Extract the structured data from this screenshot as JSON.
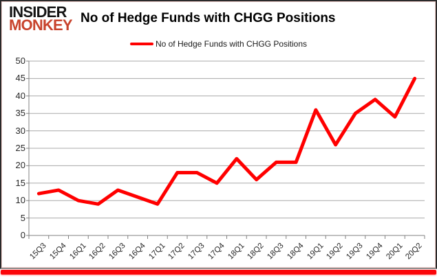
{
  "logo": {
    "line1": "INSIDER",
    "line2": "MONKEY"
  },
  "header": {
    "title": "No of Hedge Funds with CHGG Positions"
  },
  "legend": {
    "label": "No of Hedge Funds with CHGG Positions"
  },
  "chart_data": {
    "type": "line",
    "title": "No of Hedge Funds with CHGG Positions",
    "categories": [
      "15Q3",
      "15Q4",
      "16Q1",
      "16Q2",
      "16Q3",
      "16Q4",
      "17Q1",
      "17Q2",
      "17Q3",
      "17Q4",
      "18Q1",
      "18Q2",
      "18Q3",
      "18Q4",
      "19Q1",
      "19Q2",
      "19Q3",
      "19Q4",
      "20Q1",
      "20Q2"
    ],
    "series": [
      {
        "name": "No of Hedge Funds with CHGG Positions",
        "color": "#ff0000",
        "values": [
          12,
          13,
          10,
          9,
          13,
          11,
          9,
          18,
          18,
          15,
          22,
          16,
          21,
          21,
          36,
          26,
          35,
          39,
          34,
          45
        ]
      }
    ],
    "xlabel": "",
    "ylabel": "",
    "ylim": [
      0,
      50
    ],
    "yticks": [
      0,
      5,
      10,
      15,
      20,
      25,
      30,
      35,
      40,
      45,
      50
    ],
    "grid": true,
    "legend_position": "top-center"
  },
  "colors": {
    "line": "#ff0000",
    "logo_red": "#c8432c",
    "grid": "#a8a8a8",
    "axis": "#808080",
    "footer_bar": "#fb0509"
  }
}
